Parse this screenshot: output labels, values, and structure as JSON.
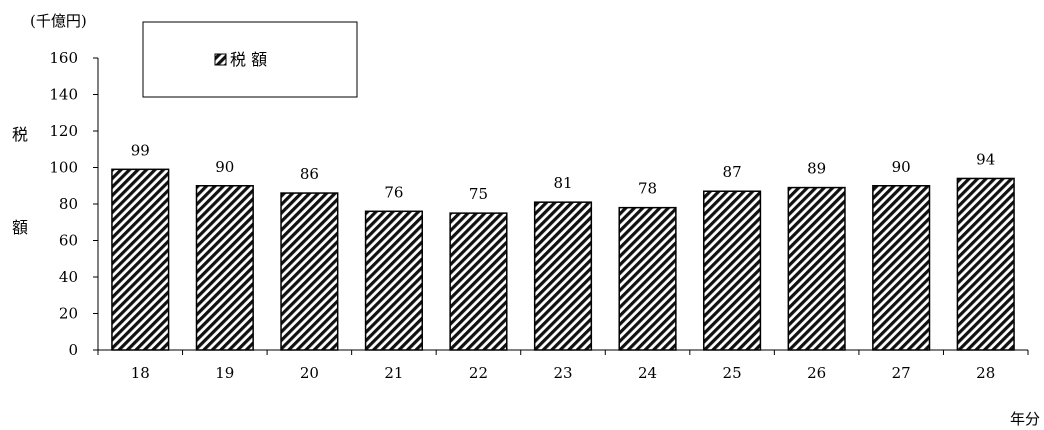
{
  "chart_data": {
    "type": "bar",
    "categories": [
      "18",
      "19",
      "20",
      "21",
      "22",
      "23",
      "24",
      "25",
      "26",
      "27",
      "28"
    ],
    "series": [
      {
        "name": "税 額",
        "values": [
          99,
          90,
          86,
          76,
          75,
          81,
          78,
          87,
          89,
          90,
          94
        ]
      }
    ],
    "data_labels": [
      "99",
      "90",
      "86",
      "76",
      "75",
      "81",
      "78",
      "87",
      "89",
      "90",
      "94"
    ],
    "y_ticks": [
      "0",
      "20",
      "40",
      "60",
      "80",
      "100",
      "120",
      "140",
      "160"
    ],
    "ylim": [
      0,
      160
    ],
    "unit_label": "(千億円)",
    "ylabel_chars": [
      "税",
      "額"
    ],
    "xlabel": "年分",
    "legend": {
      "label": "税 額",
      "position": "top-left"
    },
    "bar_pattern": "diagonal-hatch",
    "grid": false
  }
}
